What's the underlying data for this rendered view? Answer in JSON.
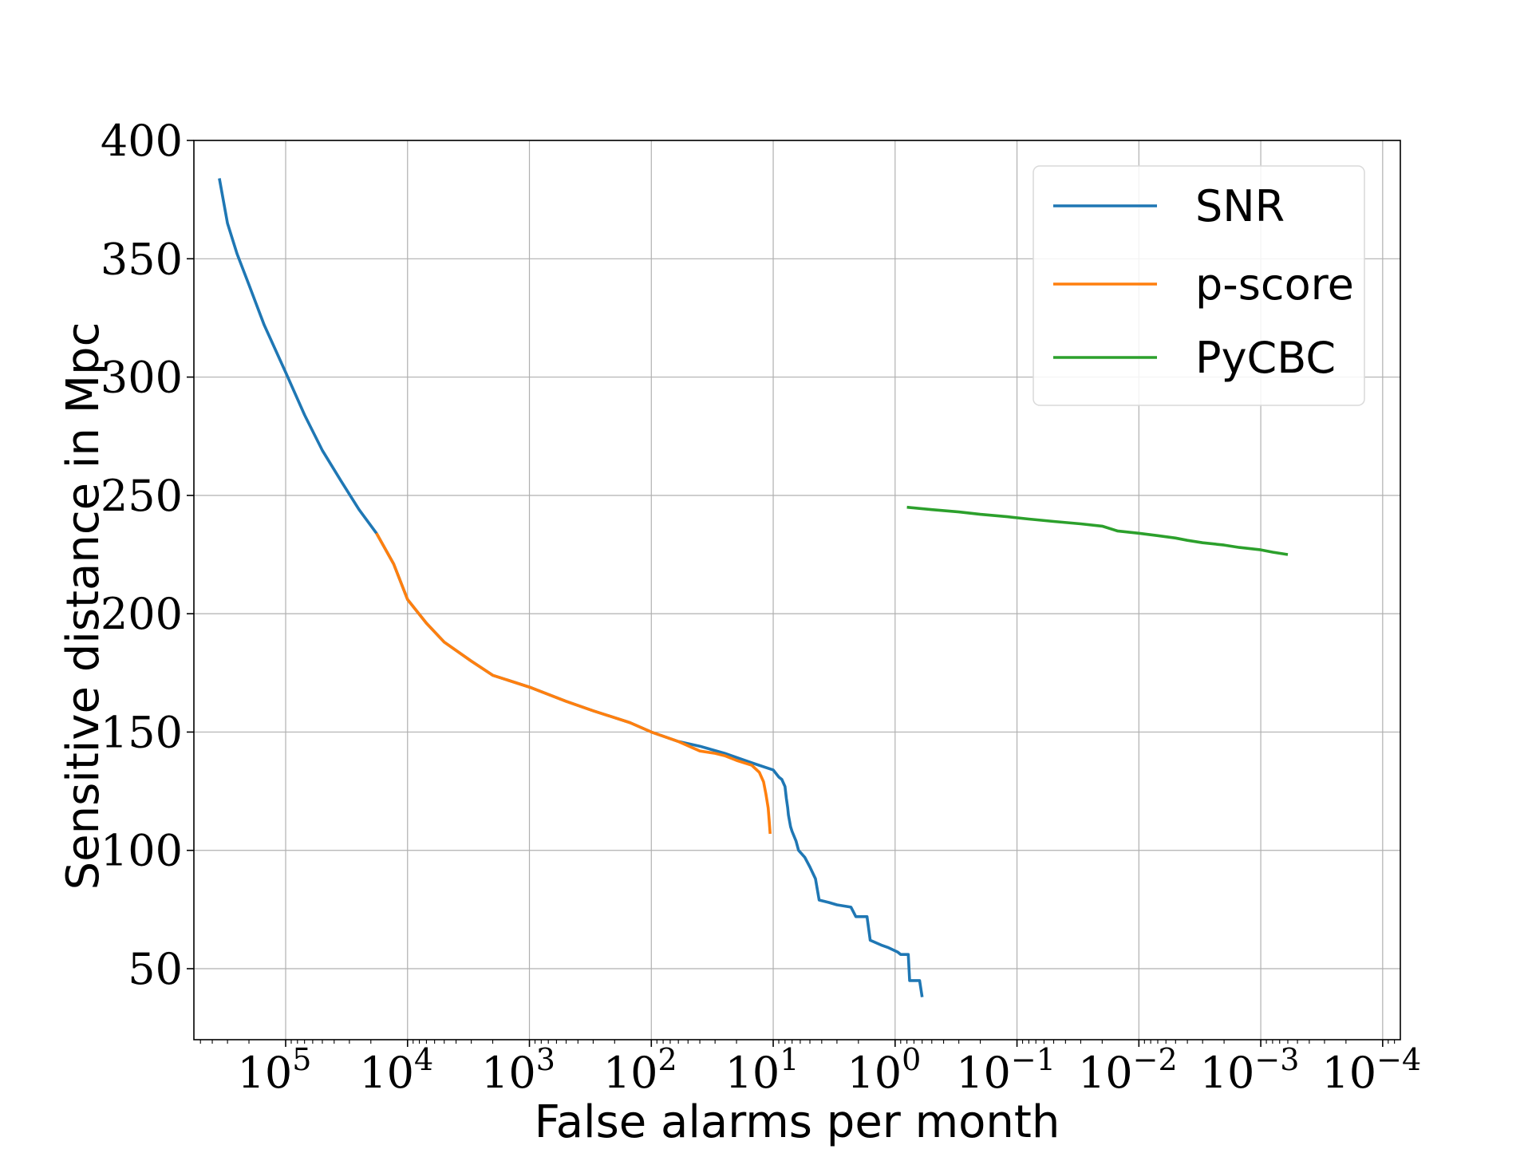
{
  "chart_data": {
    "type": "line",
    "title": "",
    "xlabel": "False alarms per month",
    "ylabel": "Sensitive distance in Mpc",
    "x_scale": "log",
    "x_reversed": true,
    "xlim": [
      566000,
      7.16e-05
    ],
    "ylim": [
      20,
      400
    ],
    "grid": true,
    "legend_position": "top-right",
    "x_ticks": [
      {
        "value": 100000,
        "mantissa": "10",
        "exponent": "5"
      },
      {
        "value": 10000,
        "mantissa": "10",
        "exponent": "4"
      },
      {
        "value": 1000,
        "mantissa": "10",
        "exponent": "3"
      },
      {
        "value": 100,
        "mantissa": "10",
        "exponent": "2"
      },
      {
        "value": 10,
        "mantissa": "10",
        "exponent": "1"
      },
      {
        "value": 1,
        "mantissa": "10",
        "exponent": "0"
      },
      {
        "value": 0.1,
        "mantissa": "10",
        "exponent": "−1"
      },
      {
        "value": 0.01,
        "mantissa": "10",
        "exponent": "−2"
      },
      {
        "value": 0.001,
        "mantissa": "10",
        "exponent": "−3"
      },
      {
        "value": 0.0001,
        "mantissa": "10",
        "exponent": "−4"
      }
    ],
    "y_ticks": [
      {
        "value": 50,
        "label": "50"
      },
      {
        "value": 100,
        "label": "100"
      },
      {
        "value": 150,
        "label": "150"
      },
      {
        "value": 200,
        "label": "200"
      },
      {
        "value": 250,
        "label": "250"
      },
      {
        "value": 300,
        "label": "300"
      },
      {
        "value": 350,
        "label": "350"
      },
      {
        "value": 400,
        "label": "400"
      }
    ],
    "series": [
      {
        "name": "SNR",
        "color": "#1f77b4",
        "points": [
          [
            350000,
            384
          ],
          [
            300000,
            365
          ],
          [
            250000,
            352
          ],
          [
            200000,
            339
          ],
          [
            150000,
            322
          ],
          [
            100000,
            302
          ],
          [
            70000,
            284
          ],
          [
            50000,
            269
          ],
          [
            35000,
            256
          ],
          [
            25000,
            244
          ],
          [
            18000,
            234
          ],
          [
            13000,
            221
          ],
          [
            10000,
            206
          ],
          [
            7000,
            196
          ],
          [
            5000,
            188
          ],
          [
            3000,
            180
          ],
          [
            2000,
            174
          ],
          [
            1000,
            169
          ],
          [
            500,
            163
          ],
          [
            300,
            159
          ],
          [
            150,
            154
          ],
          [
            100,
            150
          ],
          [
            60,
            146
          ],
          [
            40,
            144
          ],
          [
            25,
            141
          ],
          [
            15,
            137
          ],
          [
            10,
            134
          ],
          [
            9,
            131
          ],
          [
            8.5,
            130
          ],
          [
            8,
            127
          ],
          [
            7.8,
            122
          ],
          [
            7.6,
            118
          ],
          [
            7.5,
            115
          ],
          [
            7.2,
            110
          ],
          [
            7,
            108
          ],
          [
            6.5,
            104
          ],
          [
            6.2,
            100
          ],
          [
            5.5,
            97
          ],
          [
            5,
            93
          ],
          [
            4.5,
            88
          ],
          [
            4.2,
            79
          ],
          [
            3.5,
            78
          ],
          [
            3,
            77
          ],
          [
            2.3,
            76
          ],
          [
            2.1,
            72
          ],
          [
            1.7,
            72
          ],
          [
            1.6,
            62
          ],
          [
            1.3,
            60
          ],
          [
            1.15,
            59
          ],
          [
            0.95,
            57
          ],
          [
            0.9,
            56
          ],
          [
            0.78,
            56
          ],
          [
            0.76,
            45
          ],
          [
            0.63,
            45
          ],
          [
            0.6,
            38
          ]
        ]
      },
      {
        "name": "p-score",
        "color": "#ff7f0e",
        "points": [
          [
            18000,
            234
          ],
          [
            13000,
            221
          ],
          [
            10000,
            206
          ],
          [
            7000,
            196
          ],
          [
            5000,
            188
          ],
          [
            3000,
            180
          ],
          [
            2000,
            174
          ],
          [
            1000,
            169
          ],
          [
            500,
            163
          ],
          [
            300,
            159
          ],
          [
            150,
            154
          ],
          [
            100,
            150
          ],
          [
            60,
            146
          ],
          [
            40,
            142
          ],
          [
            30,
            141
          ],
          [
            25,
            140
          ],
          [
            20,
            138
          ],
          [
            15,
            136
          ],
          [
            13,
            133
          ],
          [
            12,
            129
          ],
          [
            11.5,
            124
          ],
          [
            11,
            118
          ],
          [
            10.8,
            113
          ],
          [
            10.6,
            107
          ]
        ]
      },
      {
        "name": "PyCBC",
        "color": "#2ca02c",
        "points": [
          [
            0.8,
            245
          ],
          [
            0.5,
            244
          ],
          [
            0.3,
            243
          ],
          [
            0.2,
            242
          ],
          [
            0.12,
            241
          ],
          [
            0.08,
            240
          ],
          [
            0.05,
            239
          ],
          [
            0.03,
            238
          ],
          [
            0.02,
            237
          ],
          [
            0.015,
            235
          ],
          [
            0.01,
            234
          ],
          [
            0.007,
            233
          ],
          [
            0.005,
            232
          ],
          [
            0.004,
            231
          ],
          [
            0.003,
            230
          ],
          [
            0.002,
            229
          ],
          [
            0.0015,
            228
          ],
          [
            0.001,
            227
          ],
          [
            0.0008,
            226
          ],
          [
            0.0006,
            225
          ]
        ]
      }
    ]
  }
}
